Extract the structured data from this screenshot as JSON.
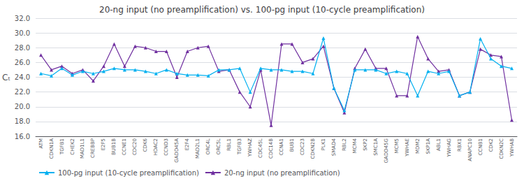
{
  "chart_data": {
    "type": "line",
    "title": "20-ng input (no preamplification) vs. 100-pg input (10-cycle preamplification)",
    "ylabel": "Cₜ",
    "categories": [
      "ATM",
      "CDKN1A",
      "TGFB1",
      "CHEK2",
      "MAD1L1",
      "CREBBP",
      "E2F5",
      "BUB1B",
      "CCNE1",
      "CDC20",
      "CDK6",
      "HDAC2",
      "CCND3",
      "GADD45A",
      "E2F4",
      "MAD2L1",
      "ORC4L",
      "ORC5L",
      "RBL1",
      "TGFB3",
      "YWHAZ",
      "CDC45L",
      "CDC14B",
      "CCNA1",
      "BUB1",
      "CDC23",
      "CDKN2B",
      "PLK1",
      "SMAD4",
      "RBL2",
      "MCM4",
      "SKP2",
      "SMC1A",
      "GADD45G",
      "MCM5",
      "YWHAE",
      "MDM2",
      "SKP1A",
      "ABL1",
      "YWHAG",
      "RBX1",
      "ANAPC10",
      "CCNB1",
      "CDK2",
      "CDKN2C",
      "YWHAB"
    ],
    "series": [
      {
        "name": "100-pg input (10-cycle preamplification)",
        "color": "#00B0F0",
        "marker": "triangle",
        "values": [
          24.5,
          24.2,
          25.2,
          24.3,
          24.8,
          24.5,
          24.8,
          25.2,
          25.0,
          25.0,
          24.8,
          24.5,
          25.0,
          24.5,
          24.3,
          24.3,
          24.2,
          25.0,
          25.0,
          25.2,
          22.0,
          25.2,
          25.0,
          25.0,
          24.8,
          24.8,
          24.5,
          29.3,
          22.5,
          19.5,
          25.0,
          25.0,
          25.0,
          24.5,
          24.8,
          24.5,
          21.5,
          24.8,
          24.5,
          24.8,
          21.5,
          22.0,
          29.2,
          26.5,
          25.5,
          25.2
        ]
      },
      {
        "name": "20-ng input (no preamplification)",
        "color": "#7030A0",
        "marker": "triangle",
        "values": [
          27.0,
          25.0,
          25.5,
          24.5,
          25.0,
          23.5,
          25.5,
          28.5,
          25.5,
          28.2,
          28.0,
          27.5,
          27.5,
          24.0,
          27.5,
          28.0,
          28.2,
          24.8,
          25.0,
          22.0,
          20.0,
          25.0,
          17.5,
          28.5,
          28.5,
          26.0,
          26.5,
          28.2,
          22.5,
          19.2,
          25.2,
          27.8,
          25.2,
          25.2,
          21.5,
          21.5,
          29.5,
          26.5,
          24.8,
          25.0,
          21.5,
          22.0,
          27.8,
          27.0,
          26.8,
          18.2
        ]
      }
    ],
    "ylim": [
      16.0,
      32.0
    ],
    "yticks": [
      {
        "value": 16,
        "label": "16.0"
      },
      {
        "value": 18,
        "label": "18.0"
      },
      {
        "value": 20,
        "label": "20.0"
      },
      {
        "value": 22,
        "label": "22.0"
      },
      {
        "value": 24,
        "label": "24.0"
      },
      {
        "value": 26,
        "label": "26.0"
      },
      {
        "value": 28,
        "label": "28.0"
      },
      {
        "value": 30,
        "label": "30.0"
      },
      {
        "value": 32,
        "label": "32.0"
      }
    ],
    "grid": true,
    "legend": "lower left"
  }
}
